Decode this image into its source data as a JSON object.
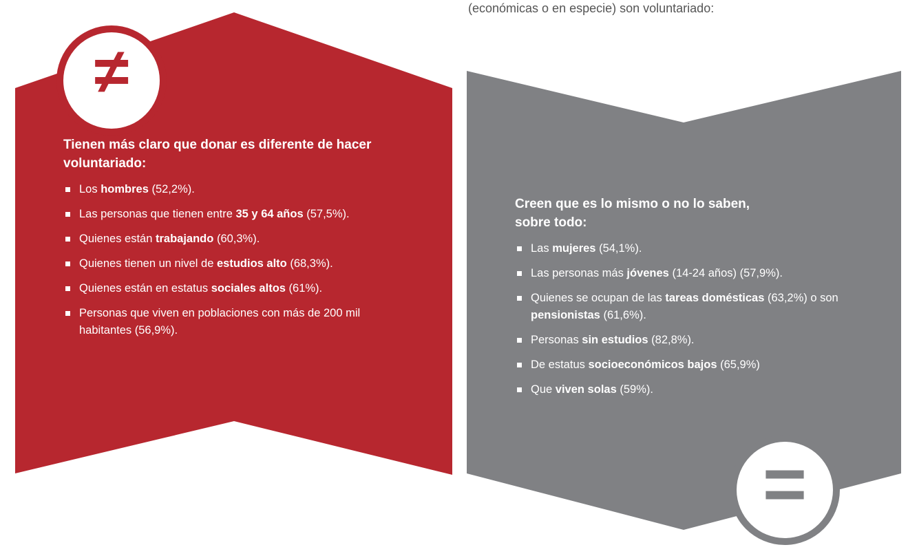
{
  "intro": "(económicas o en especie) son voluntariado:",
  "panels": [
    {
      "symbol": "≠",
      "heading": "Tienen más claro que donar es diferente de hacer voluntariado:",
      "items": [
        {
          "parts": [
            {
              "text": "Los "
            },
            {
              "text": "hombres",
              "bold": true
            },
            {
              "text": " (52,2%)."
            }
          ]
        },
        {
          "parts": [
            {
              "text": "Las personas que tienen entre "
            },
            {
              "text": "35 y 64 años",
              "bold": true
            },
            {
              "text": " (57,5%)."
            }
          ]
        },
        {
          "parts": [
            {
              "text": "Quienes están "
            },
            {
              "text": "trabajando",
              "bold": true
            },
            {
              "text": " (60,3%)."
            }
          ]
        },
        {
          "parts": [
            {
              "text": "Quienes tienen un nivel de "
            },
            {
              "text": "estudios alto",
              "bold": true
            },
            {
              "text": " (68,3%)."
            }
          ]
        },
        {
          "parts": [
            {
              "text": "Quienes están en estatus "
            },
            {
              "text": "sociales altos",
              "bold": true
            },
            {
              "text": " (61%)."
            }
          ]
        },
        {
          "parts": [
            {
              "text": "Personas que viven en poblaciones con más de 200 mil habitantes (56,9%)."
            }
          ]
        }
      ]
    },
    {
      "symbol": "=",
      "heading": "Creen que es lo mismo o no lo saben, sobre todo:",
      "items": [
        {
          "parts": [
            {
              "text": "Las "
            },
            {
              "text": "mujeres",
              "bold": true
            },
            {
              "text": " (54,1%)."
            }
          ]
        },
        {
          "parts": [
            {
              "text": "Las personas más "
            },
            {
              "text": "jóvenes",
              "bold": true
            },
            {
              "text": " (14-24 años) (57,9%)."
            }
          ]
        },
        {
          "parts": [
            {
              "text": "Quienes se ocupan de las "
            },
            {
              "text": "tareas domésticas",
              "bold": true
            },
            {
              "text": " (63,2%)  o son "
            },
            {
              "text": "pensionistas",
              "bold": true
            },
            {
              "text": " (61,6%)."
            }
          ]
        },
        {
          "parts": [
            {
              "text": "Personas "
            },
            {
              "text": "sin estudios",
              "bold": true
            },
            {
              "text": " (82,8%)."
            }
          ]
        },
        {
          "parts": [
            {
              "text": "De estatus "
            },
            {
              "text": "socioeconómicos bajos",
              "bold": true
            },
            {
              "text": " (65,9%)"
            }
          ]
        },
        {
          "parts": [
            {
              "text": "Que "
            },
            {
              "text": "viven solas",
              "bold": true
            },
            {
              "text": " (59%)."
            }
          ]
        }
      ]
    }
  ]
}
